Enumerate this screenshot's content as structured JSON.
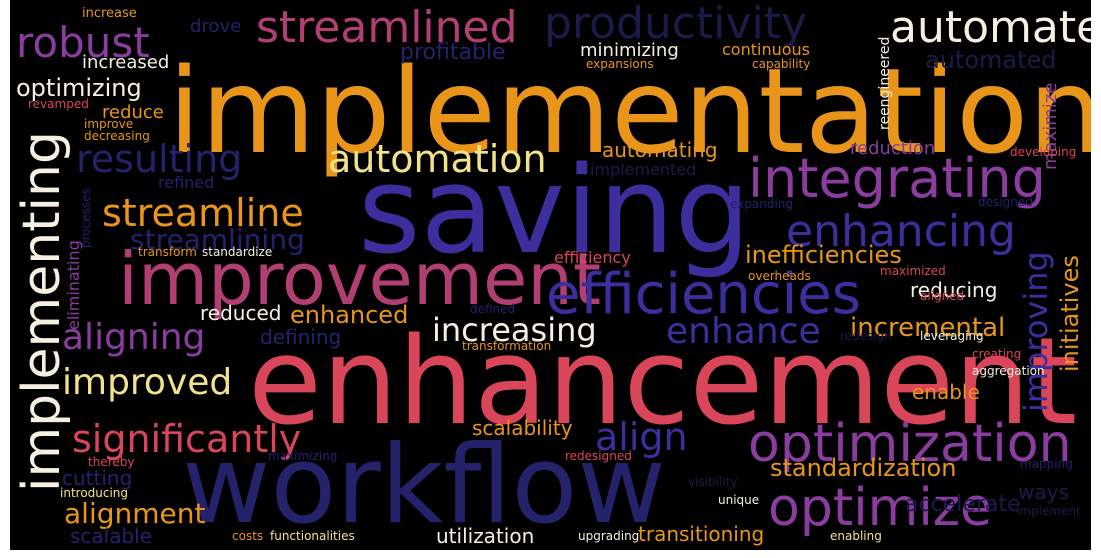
{
  "palette": {
    "orange": "#e8951a",
    "red": "#d94559",
    "pink": "#b13f73",
    "purple": "#8a3d9e",
    "indigo": "#3d2e9e",
    "navy": "#24226b",
    "dark": "#1b1b4a",
    "yellow": "#f2e38a",
    "cream": "#f5f0e1",
    "amber": "#f0a33a",
    "rust": "#c8472e"
  },
  "words": [
    "implementation",
    "saving",
    "enhancement",
    "workflow",
    "improvement",
    "efficiencies",
    "integrating",
    "optimization",
    "implementing",
    "streamlined",
    "productivity",
    "automate",
    "robust",
    "automation",
    "resulting",
    "enhancing",
    "streamline",
    "aligning",
    "increasing",
    "enhance",
    "significantly",
    "improved",
    "optimize",
    "align",
    "improving",
    "initiatives",
    "inefficiencies",
    "incremental",
    "alignment",
    "standardization",
    "streamlining",
    "optimizing",
    "automated",
    "profitable",
    "increased",
    "minimizing",
    "continuous",
    "automating",
    "reduction",
    "refined",
    "implemented",
    "reduce",
    "drove",
    "increase",
    "reengineered",
    "maximize",
    "revamped",
    "improve",
    "decreasing",
    "expansions",
    "capability",
    "developing",
    "designed",
    "expanding",
    "efficiency",
    "transform",
    "standardize",
    "processes",
    "eliminating",
    "reducing",
    "maximized",
    "overheads",
    "aligned",
    "reduced",
    "defining",
    "enhanced",
    "defined",
    "transformation",
    "redesign",
    "leveraging",
    "creating",
    "aggregation",
    "enable",
    "scalability",
    "thereby",
    "cutting",
    "maximizing",
    "redesigned",
    "introducing",
    "ways",
    "mapping",
    "visibility",
    "unique",
    "implement",
    "accelerate",
    "scalable",
    "costs",
    "functionalities",
    "utilization",
    "upgrading",
    "transitioning",
    "enabling"
  ]
}
